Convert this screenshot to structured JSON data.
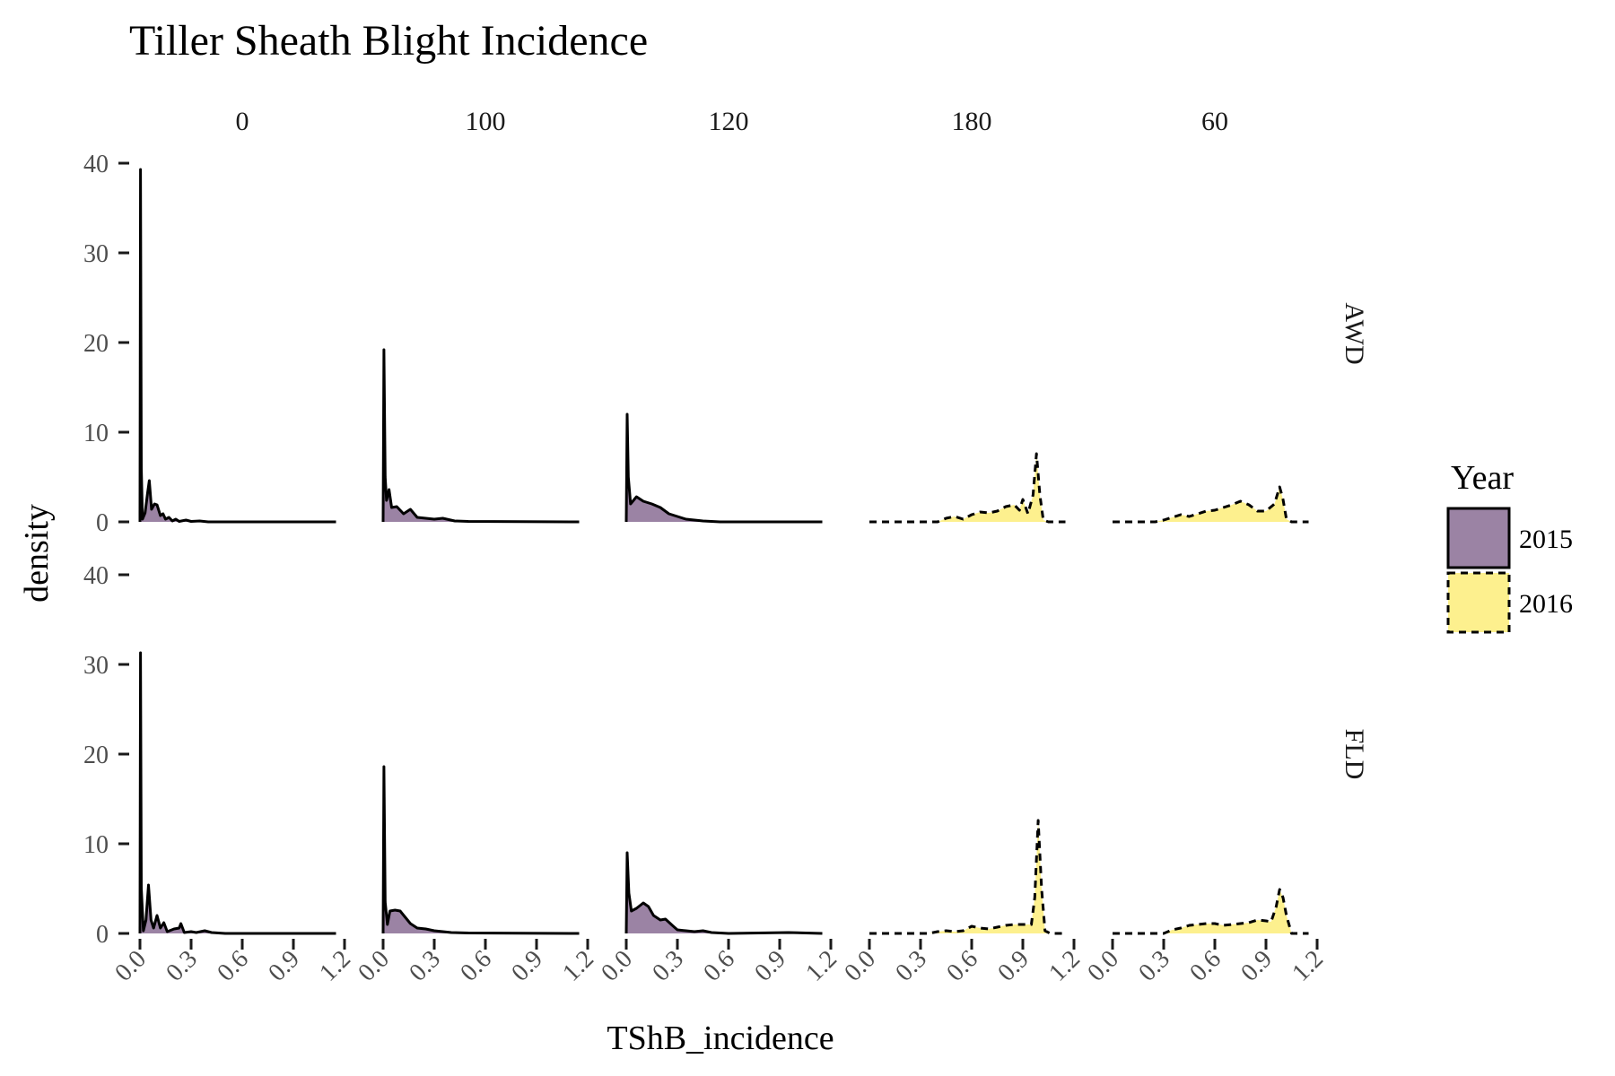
{
  "chart_data": {
    "type": "area",
    "subtype": "density",
    "title": "Tiller Sheath Blight Incidence",
    "xlabel": "TShB_incidence",
    "ylabel": "density",
    "xlim": [
      0,
      1.2
    ],
    "xticks": [
      0.0,
      0.3,
      0.6,
      0.9,
      1.2
    ],
    "xtick_labels": [
      "0.0",
      "0.3",
      "0.6",
      "0.9",
      "1.2"
    ],
    "grid": false,
    "legend": {
      "title": "Year",
      "position": "right",
      "entries": [
        {
          "label": "2015",
          "fill": "#9b83a4",
          "linetype": "solid"
        },
        {
          "label": "2016",
          "fill": "#fdf08e",
          "linetype": "dashed"
        }
      ]
    },
    "columns": [
      "0",
      "100",
      "120",
      "180",
      "60"
    ],
    "rows": [
      {
        "label": "AWD",
        "yticks": [
          0,
          10,
          20,
          30,
          40
        ],
        "ylim": [
          0,
          40
        ],
        "panels": [
          {
            "column": "0",
            "year": "2015",
            "points": [
              [
                0,
                0
              ],
              [
                0.003,
                39.3
              ],
              [
                0.008,
                6
              ],
              [
                0.015,
                0.3
              ],
              [
                0.03,
                1
              ],
              [
                0.045,
                3.3
              ],
              [
                0.055,
                4.6
              ],
              [
                0.068,
                1.4
              ],
              [
                0.085,
                2
              ],
              [
                0.1,
                1.9
              ],
              [
                0.12,
                0.7
              ],
              [
                0.135,
                0.9
              ],
              [
                0.15,
                0.3
              ],
              [
                0.17,
                0.5
              ],
              [
                0.19,
                0.1
              ],
              [
                0.21,
                0.3
              ],
              [
                0.23,
                0.05
              ],
              [
                0.27,
                0.2
              ],
              [
                0.3,
                0.05
              ],
              [
                0.35,
                0.1
              ],
              [
                0.4,
                0
              ],
              [
                1.15,
                0
              ]
            ]
          },
          {
            "column": "100",
            "year": "2015",
            "points": [
              [
                0,
                0
              ],
              [
                0.005,
                19.2
              ],
              [
                0.012,
                5
              ],
              [
                0.02,
                2.4
              ],
              [
                0.035,
                3.6
              ],
              [
                0.05,
                1.6
              ],
              [
                0.08,
                1.7
              ],
              [
                0.12,
                0.9
              ],
              [
                0.16,
                1.4
              ],
              [
                0.2,
                0.5
              ],
              [
                0.25,
                0.4
              ],
              [
                0.3,
                0.3
              ],
              [
                0.35,
                0.4
              ],
              [
                0.42,
                0.1
              ],
              [
                0.5,
                0.05
              ],
              [
                1.15,
                0
              ]
            ]
          },
          {
            "column": "120",
            "year": "2015",
            "points": [
              [
                0,
                0
              ],
              [
                0.005,
                12
              ],
              [
                0.012,
                5
              ],
              [
                0.025,
                2
              ],
              [
                0.06,
                2.8
              ],
              [
                0.1,
                2.3
              ],
              [
                0.15,
                2
              ],
              [
                0.2,
                1.6
              ],
              [
                0.25,
                0.9
              ],
              [
                0.3,
                0.6
              ],
              [
                0.35,
                0.3
              ],
              [
                0.4,
                0.2
              ],
              [
                0.45,
                0.1
              ],
              [
                0.55,
                0
              ],
              [
                1.15,
                0
              ]
            ]
          },
          {
            "column": "180",
            "year": "2016",
            "points": [
              [
                0,
                0
              ],
              [
                0.4,
                0
              ],
              [
                0.45,
                0.4
              ],
              [
                0.5,
                0.6
              ],
              [
                0.55,
                0.3
              ],
              [
                0.6,
                0.8
              ],
              [
                0.65,
                1.1
              ],
              [
                0.7,
                1
              ],
              [
                0.75,
                1.2
              ],
              [
                0.8,
                1.7
              ],
              [
                0.85,
                1.9
              ],
              [
                0.88,
                1.3
              ],
              [
                0.9,
                2.5
              ],
              [
                0.93,
                0.9
              ],
              [
                0.96,
                3
              ],
              [
                0.98,
                7.6
              ],
              [
                1.0,
                3
              ],
              [
                1.02,
                0.2
              ],
              [
                1.05,
                0
              ],
              [
                1.15,
                0
              ]
            ]
          },
          {
            "column": "60",
            "year": "2016",
            "points": [
              [
                0,
                0
              ],
              [
                0.25,
                0
              ],
              [
                0.3,
                0.2
              ],
              [
                0.35,
                0.5
              ],
              [
                0.4,
                0.8
              ],
              [
                0.45,
                0.6
              ],
              [
                0.5,
                0.9
              ],
              [
                0.55,
                1.2
              ],
              [
                0.6,
                1.3
              ],
              [
                0.65,
                1.6
              ],
              [
                0.7,
                1.9
              ],
              [
                0.75,
                2.3
              ],
              [
                0.8,
                1.9
              ],
              [
                0.85,
                1.2
              ],
              [
                0.9,
                1.2
              ],
              [
                0.95,
                2
              ],
              [
                0.98,
                3.9
              ],
              [
                1.0,
                2.5
              ],
              [
                1.02,
                0.3
              ],
              [
                1.05,
                0
              ],
              [
                1.15,
                0
              ]
            ]
          }
        ]
      },
      {
        "label": "FLD",
        "yticks": [
          0,
          10,
          20,
          30,
          40
        ],
        "ylim": [
          0,
          40
        ],
        "panels": [
          {
            "column": "0",
            "year": "2015",
            "points": [
              [
                0,
                0
              ],
              [
                0.003,
                31.3
              ],
              [
                0.008,
                5
              ],
              [
                0.02,
                0.3
              ],
              [
                0.035,
                1.5
              ],
              [
                0.05,
                5.4
              ],
              [
                0.065,
                1.5
              ],
              [
                0.08,
                0.6
              ],
              [
                0.1,
                2
              ],
              [
                0.12,
                0.6
              ],
              [
                0.14,
                1.2
              ],
              [
                0.16,
                0.2
              ],
              [
                0.2,
                0.5
              ],
              [
                0.23,
                0.6
              ],
              [
                0.24,
                1.1
              ],
              [
                0.26,
                0.1
              ],
              [
                0.3,
                0.2
              ],
              [
                0.33,
                0.1
              ],
              [
                0.38,
                0.3
              ],
              [
                0.42,
                0.1
              ],
              [
                0.5,
                0
              ],
              [
                1.15,
                0
              ]
            ]
          },
          {
            "column": "100",
            "year": "2015",
            "points": [
              [
                0,
                0
              ],
              [
                0.005,
                18.6
              ],
              [
                0.012,
                3.5
              ],
              [
                0.025,
                1
              ],
              [
                0.04,
                2.5
              ],
              [
                0.07,
                2.6
              ],
              [
                0.1,
                2.5
              ],
              [
                0.13,
                1.8
              ],
              [
                0.16,
                1.1
              ],
              [
                0.2,
                0.6
              ],
              [
                0.25,
                0.5
              ],
              [
                0.3,
                0.3
              ],
              [
                0.35,
                0.2
              ],
              [
                0.4,
                0.1
              ],
              [
                0.5,
                0.05
              ],
              [
                1.15,
                0
              ]
            ]
          },
          {
            "column": "120",
            "year": "2015",
            "points": [
              [
                0,
                0
              ],
              [
                0.005,
                9
              ],
              [
                0.015,
                4.5
              ],
              [
                0.03,
                2.5
              ],
              [
                0.06,
                2.8
              ],
              [
                0.1,
                3.4
              ],
              [
                0.13,
                3
              ],
              [
                0.16,
                2
              ],
              [
                0.2,
                1.5
              ],
              [
                0.23,
                1.6
              ],
              [
                0.27,
                0.9
              ],
              [
                0.3,
                0.4
              ],
              [
                0.35,
                0.3
              ],
              [
                0.4,
                0.2
              ],
              [
                0.45,
                0.3
              ],
              [
                0.5,
                0.1
              ],
              [
                0.6,
                0
              ],
              [
                0.95,
                0.1
              ],
              [
                1.15,
                0
              ]
            ]
          },
          {
            "column": "180",
            "year": "2016",
            "points": [
              [
                0,
                0
              ],
              [
                0.35,
                0
              ],
              [
                0.4,
                0.2
              ],
              [
                0.45,
                0.3
              ],
              [
                0.5,
                0.2
              ],
              [
                0.55,
                0.3
              ],
              [
                0.6,
                0.8
              ],
              [
                0.65,
                0.6
              ],
              [
                0.7,
                0.5
              ],
              [
                0.75,
                0.7
              ],
              [
                0.8,
                0.9
              ],
              [
                0.85,
                1
              ],
              [
                0.9,
                1
              ],
              [
                0.95,
                1
              ],
              [
                0.97,
                4
              ],
              [
                0.99,
                12.6
              ],
              [
                1.01,
                5
              ],
              [
                1.03,
                0.3
              ],
              [
                1.06,
                0
              ],
              [
                1.15,
                0
              ]
            ]
          },
          {
            "column": "60",
            "year": "2016",
            "points": [
              [
                0,
                0
              ],
              [
                0.3,
                0
              ],
              [
                0.35,
                0.4
              ],
              [
                0.4,
                0.6
              ],
              [
                0.45,
                0.9
              ],
              [
                0.5,
                1
              ],
              [
                0.55,
                1.1
              ],
              [
                0.6,
                1.1
              ],
              [
                0.65,
                0.9
              ],
              [
                0.7,
                1
              ],
              [
                0.75,
                1.1
              ],
              [
                0.8,
                1.2
              ],
              [
                0.85,
                1.5
              ],
              [
                0.9,
                1.4
              ],
              [
                0.93,
                1.3
              ],
              [
                0.96,
                3
              ],
              [
                0.98,
                4.9
              ],
              [
                1.0,
                4
              ],
              [
                1.02,
                2
              ],
              [
                1.05,
                0
              ],
              [
                1.15,
                0
              ]
            ]
          }
        ]
      }
    ]
  }
}
